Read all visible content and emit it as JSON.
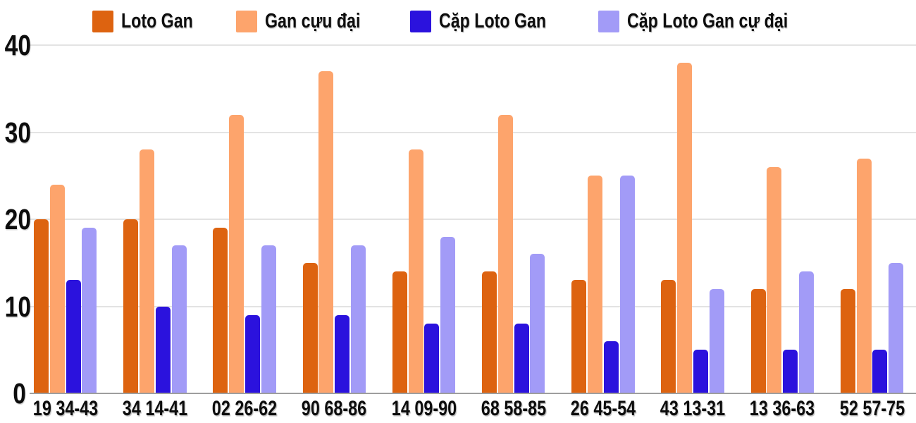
{
  "colors": {
    "background": "#ffffff",
    "gridline": "#e3e3e3",
    "axis_line": "#9e9e9e",
    "label_text": "#0d0d0d"
  },
  "chart_data": {
    "type": "bar",
    "title": "",
    "xlabel": "",
    "ylabel": "",
    "ylim": [
      0,
      40
    ],
    "yticks": [
      0,
      10,
      20,
      30,
      40
    ],
    "grid": true,
    "legend_position": "top",
    "categories": [
      "19 34-43",
      "34 14-41",
      "02 26-62",
      "90 68-86",
      "14 09-90",
      "68 58-85",
      "26 45-54",
      "43 13-31",
      "13 36-63",
      "52 57-75"
    ],
    "series": [
      {
        "name": "Loto Gan",
        "color": "#dd6310",
        "values": [
          20,
          20,
          19,
          15,
          14,
          14,
          13,
          13,
          12,
          12
        ]
      },
      {
        "name": "Gan cựu đại",
        "color": "#fda46c",
        "values": [
          24,
          28,
          32,
          37,
          28,
          32,
          25,
          38,
          26,
          27
        ]
      },
      {
        "name": "Cặp Loto Gan",
        "color": "#2b12dd",
        "values": [
          13,
          10,
          9,
          9,
          8,
          8,
          6,
          5,
          5,
          5
        ]
      },
      {
        "name": "Cặp Loto Gan cự đại",
        "color": "#a29bf7",
        "values": [
          19,
          17,
          17,
          17,
          18,
          16,
          25,
          12,
          14,
          15
        ]
      }
    ]
  }
}
